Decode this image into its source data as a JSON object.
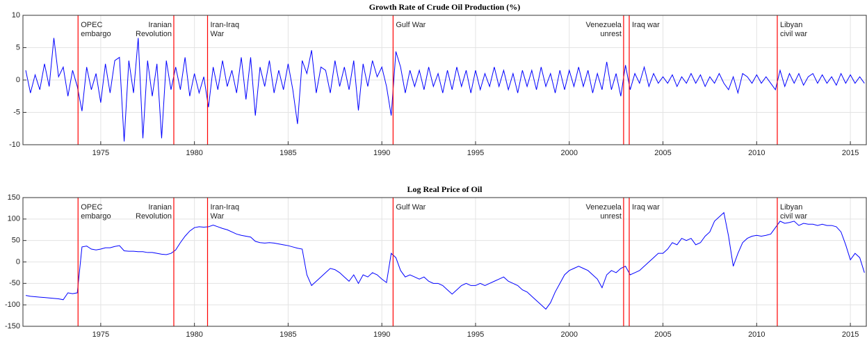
{
  "chart_data": [
    {
      "type": "line",
      "title": "Growth Rate of Crude Oil Production (%)",
      "x": [
        1971,
        1971.25,
        1971.5,
        1971.75,
        1972,
        1972.25,
        1972.5,
        1972.75,
        1973,
        1973.25,
        1973.5,
        1973.75,
        1974,
        1974.25,
        1974.5,
        1974.75,
        1975,
        1975.25,
        1975.5,
        1975.75,
        1976,
        1976.25,
        1976.5,
        1976.75,
        1977,
        1977.25,
        1977.5,
        1977.75,
        1978,
        1978.25,
        1978.5,
        1978.75,
        1979,
        1979.25,
        1979.5,
        1979.75,
        1980,
        1980.25,
        1980.5,
        1980.75,
        1981,
        1981.25,
        1981.5,
        1981.75,
        1982,
        1982.25,
        1982.5,
        1982.75,
        1983,
        1983.25,
        1983.5,
        1983.75,
        1984,
        1984.25,
        1984.5,
        1984.75,
        1985,
        1985.25,
        1985.5,
        1985.75,
        1986,
        1986.25,
        1986.5,
        1986.75,
        1987,
        1987.25,
        1987.5,
        1987.75,
        1988,
        1988.25,
        1988.5,
        1988.75,
        1989,
        1989.25,
        1989.5,
        1989.75,
        1990,
        1990.25,
        1990.5,
        1990.75,
        1991,
        1991.25,
        1991.5,
        1991.75,
        1992,
        1992.25,
        1992.5,
        1992.75,
        1993,
        1993.25,
        1993.5,
        1993.75,
        1994,
        1994.25,
        1994.5,
        1994.75,
        1995,
        1995.25,
        1995.5,
        1995.75,
        1996,
        1996.25,
        1996.5,
        1996.75,
        1997,
        1997.25,
        1997.5,
        1997.75,
        1998,
        1998.25,
        1998.5,
        1998.75,
        1999,
        1999.25,
        1999.5,
        1999.75,
        2000,
        2000.25,
        2000.5,
        2000.75,
        2001,
        2001.25,
        2001.5,
        2001.75,
        2002,
        2002.25,
        2002.5,
        2002.75,
        2003,
        2003.25,
        2003.5,
        2003.75,
        2004,
        2004.25,
        2004.5,
        2004.75,
        2005,
        2005.25,
        2005.5,
        2005.75,
        2006,
        2006.25,
        2006.5,
        2006.75,
        2007,
        2007.25,
        2007.5,
        2007.75,
        2008,
        2008.25,
        2008.5,
        2008.75,
        2009,
        2009.25,
        2009.5,
        2009.75,
        2010,
        2010.25,
        2010.5,
        2010.75,
        2011,
        2011.25,
        2011.5,
        2011.75,
        2012,
        2012.25,
        2012.5,
        2012.75,
        2013,
        2013.25,
        2013.5,
        2013.75,
        2014,
        2014.25,
        2014.5,
        2014.75,
        2015,
        2015.25,
        2015.5,
        2015.75
      ],
      "series": [
        {
          "color": "#0000ff",
          "values": [
            1.5,
            -2,
            0.8,
            -1.5,
            2.5,
            -1,
            6.5,
            0.5,
            2,
            -2.5,
            1.5,
            -1,
            -4.8,
            2,
            -1.5,
            1,
            -3.5,
            2.5,
            -2,
            3,
            3.5,
            -9.5,
            3,
            -2,
            6.5,
            -9,
            3,
            -2.5,
            2.5,
            -9,
            3,
            -1.5,
            2,
            -1.5,
            3.5,
            -2.5,
            1,
            -2,
            0.5,
            -4.2,
            2,
            -1.5,
            3,
            -1,
            1.5,
            -2,
            3.5,
            -3,
            3.5,
            -5.5,
            2,
            -1,
            3,
            -2,
            1.5,
            -1.5,
            2.5,
            -1.5,
            -6.8,
            3,
            1,
            4.6,
            -2,
            2,
            1.5,
            -2,
            3,
            -1,
            2,
            -1.5,
            3,
            -4.7,
            2.5,
            -1,
            3,
            0.5,
            2,
            -1,
            -5.5,
            4.4,
            2,
            -2,
            1.5,
            -1,
            1.5,
            -1.5,
            2,
            -1,
            1,
            -2,
            1.5,
            -1.5,
            2,
            -1,
            1.5,
            -2,
            1.5,
            -1.5,
            1,
            -1,
            2,
            -1,
            1.5,
            -1.5,
            1,
            -2,
            1.5,
            -1,
            1.5,
            -1.5,
            2,
            -1,
            1,
            -2,
            1.5,
            -1.5,
            1.5,
            -1,
            2,
            -1,
            1.5,
            -2,
            1,
            -1.5,
            2.8,
            -1.5,
            1,
            -2.5,
            2.3,
            -1.5,
            1,
            -0.5,
            2,
            -1,
            1,
            -0.5,
            0.5,
            -0.5,
            0.8,
            -1,
            0.5,
            -0.5,
            1,
            -0.5,
            0.8,
            -1,
            0.5,
            -0.5,
            1,
            -0.5,
            -1.5,
            0.5,
            -2,
            1,
            0.5,
            -0.5,
            0.8,
            -0.5,
            0.5,
            -0.5,
            -1.5,
            1.5,
            -1,
            1,
            -0.5,
            1,
            -0.8,
            0.5,
            1,
            -0.5,
            0.8,
            -0.5,
            0.5,
            -0.8,
            1,
            -0.5,
            0.8,
            -0.5,
            0.5,
            -0.5
          ]
        }
      ],
      "xlim": [
        1970.85,
        2015.85
      ],
      "ylim": [
        -10,
        10
      ],
      "xticks": [
        1975,
        1980,
        1985,
        1990,
        1995,
        2000,
        2005,
        2010,
        2015
      ],
      "yticks": [
        -10,
        -5,
        0,
        5,
        10
      ],
      "grid": true,
      "event_color": "#ff0000",
      "annotations": [
        {
          "x": 1973.79,
          "label": [
            "OPEC",
            "embargo"
          ],
          "side": "right"
        },
        {
          "x": 1978.9,
          "label": [
            "Iranian",
            "Revolution"
          ],
          "side": "left"
        },
        {
          "x": 1980.7,
          "label": [
            "Iran-Iraq",
            "War"
          ],
          "side": "right"
        },
        {
          "x": 1990.6,
          "label": [
            "Gulf War"
          ],
          "side": "right"
        },
        {
          "x": 2002.9,
          "label": [
            "Venezuela",
            "unrest"
          ],
          "side": "left"
        },
        {
          "x": 2003.2,
          "label": [
            "Iraq war"
          ],
          "side": "right"
        },
        {
          "x": 2011.1,
          "label": [
            "Libyan",
            "civil war"
          ],
          "side": "right"
        }
      ]
    },
    {
      "type": "line",
      "title": "Log Real Price of Oil",
      "x": [
        1971,
        1971.25,
        1971.5,
        1971.75,
        1972,
        1972.25,
        1972.5,
        1972.75,
        1973,
        1973.25,
        1973.5,
        1973.75,
        1974,
        1974.25,
        1974.5,
        1974.75,
        1975,
        1975.25,
        1975.5,
        1975.75,
        1976,
        1976.25,
        1976.5,
        1976.75,
        1977,
        1977.25,
        1977.5,
        1977.75,
        1978,
        1978.25,
        1978.5,
        1978.75,
        1979,
        1979.25,
        1979.5,
        1979.75,
        1980,
        1980.25,
        1980.5,
        1980.75,
        1981,
        1981.25,
        1981.5,
        1981.75,
        1982,
        1982.25,
        1982.5,
        1982.75,
        1983,
        1983.25,
        1983.5,
        1983.75,
        1984,
        1984.25,
        1984.5,
        1984.75,
        1985,
        1985.25,
        1985.5,
        1985.75,
        1986,
        1986.25,
        1986.5,
        1986.75,
        1987,
        1987.25,
        1987.5,
        1987.75,
        1988,
        1988.25,
        1988.5,
        1988.75,
        1989,
        1989.25,
        1989.5,
        1989.75,
        1990,
        1990.25,
        1990.5,
        1990.75,
        1991,
        1991.25,
        1991.5,
        1991.75,
        1992,
        1992.25,
        1992.5,
        1992.75,
        1993,
        1993.25,
        1993.5,
        1993.75,
        1994,
        1994.25,
        1994.5,
        1994.75,
        1995,
        1995.25,
        1995.5,
        1995.75,
        1996,
        1996.25,
        1996.5,
        1996.75,
        1997,
        1997.25,
        1997.5,
        1997.75,
        1998,
        1998.25,
        1998.5,
        1998.75,
        1999,
        1999.25,
        1999.5,
        1999.75,
        2000,
        2000.25,
        2000.5,
        2000.75,
        2001,
        2001.25,
        2001.5,
        2001.75,
        2002,
        2002.25,
        2002.5,
        2002.75,
        2003,
        2003.25,
        2003.5,
        2003.75,
        2004,
        2004.25,
        2004.5,
        2004.75,
        2005,
        2005.25,
        2005.5,
        2005.75,
        2006,
        2006.25,
        2006.5,
        2006.75,
        2007,
        2007.25,
        2007.5,
        2007.75,
        2008,
        2008.25,
        2008.5,
        2008.75,
        2009,
        2009.25,
        2009.5,
        2009.75,
        2010,
        2010.25,
        2010.5,
        2010.75,
        2011,
        2011.25,
        2011.5,
        2011.75,
        2012,
        2012.25,
        2012.5,
        2012.75,
        2013,
        2013.25,
        2013.5,
        2013.75,
        2014,
        2014.25,
        2014.5,
        2014.75,
        2015,
        2015.25,
        2015.5,
        2015.75
      ],
      "series": [
        {
          "color": "#0000ff",
          "values": [
            -78,
            -80,
            -81,
            -82,
            -83,
            -84,
            -85,
            -86,
            -88,
            -72,
            -74,
            -72,
            35,
            37,
            30,
            28,
            30,
            33,
            33,
            36,
            38,
            26,
            25,
            25,
            24,
            24,
            22,
            22,
            20,
            18,
            17,
            20,
            28,
            45,
            60,
            72,
            80,
            82,
            81,
            82,
            86,
            82,
            78,
            75,
            70,
            65,
            62,
            60,
            58,
            48,
            45,
            44,
            45,
            44,
            42,
            40,
            38,
            35,
            32,
            30,
            -30,
            -55,
            -45,
            -35,
            -25,
            -15,
            -18,
            -25,
            -35,
            -45,
            -30,
            -50,
            -30,
            -35,
            -25,
            -30,
            -40,
            -48,
            20,
            10,
            -20,
            -35,
            -30,
            -35,
            -40,
            -35,
            -45,
            -50,
            -50,
            -55,
            -65,
            -75,
            -65,
            -55,
            -50,
            -55,
            -55,
            -50,
            -55,
            -50,
            -45,
            -40,
            -35,
            -45,
            -50,
            -55,
            -65,
            -70,
            -80,
            -90,
            -100,
            -110,
            -95,
            -70,
            -50,
            -30,
            -20,
            -15,
            -10,
            -15,
            -20,
            -30,
            -40,
            -60,
            -30,
            -20,
            -25,
            -15,
            -10,
            -30,
            -25,
            -20,
            -10,
            0,
            10,
            20,
            20,
            30,
            45,
            40,
            55,
            50,
            55,
            40,
            45,
            60,
            70,
            95,
            105,
            115,
            60,
            -10,
            20,
            45,
            55,
            60,
            62,
            60,
            62,
            65,
            80,
            95,
            90,
            92,
            95,
            85,
            90,
            88,
            88,
            85,
            88,
            85,
            85,
            82,
            70,
            40,
            5,
            20,
            10,
            -25
          ]
        }
      ],
      "xlim": [
        1970.85,
        2015.85
      ],
      "ylim": [
        -150,
        150
      ],
      "xticks": [
        1975,
        1980,
        1985,
        1990,
        1995,
        2000,
        2005,
        2010,
        2015
      ],
      "yticks": [
        -150,
        -100,
        -50,
        0,
        50,
        100,
        150
      ],
      "grid": true,
      "event_color": "#ff0000",
      "annotations": [
        {
          "x": 1973.79,
          "label": [
            "OPEC",
            "embargo"
          ],
          "side": "right"
        },
        {
          "x": 1978.9,
          "label": [
            "Iranian",
            "Revolution"
          ],
          "side": "left"
        },
        {
          "x": 1980.7,
          "label": [
            "Iran-Iraq",
            "War"
          ],
          "side": "right"
        },
        {
          "x": 1990.6,
          "label": [
            "Gulf War"
          ],
          "side": "right"
        },
        {
          "x": 2002.9,
          "label": [
            "Venezuela",
            "unrest"
          ],
          "side": "left"
        },
        {
          "x": 2003.2,
          "label": [
            "Iraq war"
          ],
          "side": "right"
        },
        {
          "x": 2011.1,
          "label": [
            "Libyan",
            "civil war"
          ],
          "side": "right"
        }
      ]
    }
  ]
}
